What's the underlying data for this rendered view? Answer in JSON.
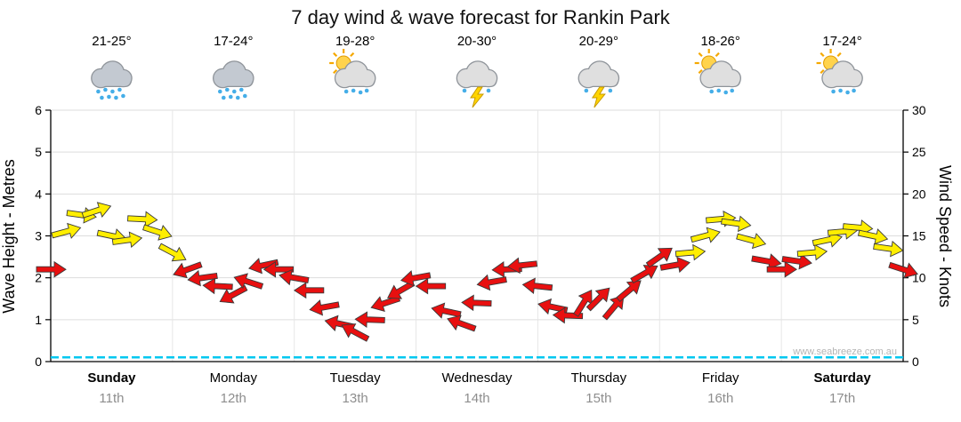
{
  "title": "7 day wind & wave forecast for Rankin Park",
  "watermark": "www.seabreeze.com.au",
  "axes": {
    "left_label": "Wave Height - Metres",
    "right_label": "Wind Speed - Knots"
  },
  "days": [
    {
      "name": "Sunday",
      "date": "11th",
      "temp": "21-25°",
      "icon": "rain",
      "weekend": true
    },
    {
      "name": "Monday",
      "date": "12th",
      "temp": "17-24°",
      "icon": "rain",
      "weekend": false
    },
    {
      "name": "Tuesday",
      "date": "13th",
      "temp": "19-28°",
      "icon": "sun-showers",
      "weekend": false
    },
    {
      "name": "Wednesday",
      "date": "14th",
      "temp": "20-30°",
      "icon": "storm",
      "weekend": false
    },
    {
      "name": "Thursday",
      "date": "15th",
      "temp": "20-29°",
      "icon": "storm",
      "weekend": false
    },
    {
      "name": "Friday",
      "date": "16th",
      "temp": "18-26°",
      "icon": "sun-showers",
      "weekend": false
    },
    {
      "name": "Saturday",
      "date": "17th",
      "temp": "17-24°",
      "icon": "sun-showers",
      "weekend": true
    }
  ],
  "chart_data": {
    "type": "wind-arrows-timeseries",
    "title": "7 day wind & wave forecast for Rankin Park",
    "y_left": {
      "label": "Wave Height - Metres",
      "min": 0,
      "max": 6,
      "ticks": [
        0,
        1,
        2,
        3,
        4,
        5,
        6
      ]
    },
    "y_right": {
      "label": "Wind Speed - Knots",
      "min": 0,
      "max": 30,
      "ticks": [
        0,
        5,
        10,
        15,
        20,
        25,
        30
      ]
    },
    "x_axis": {
      "points_per_day": 8,
      "point_interval_hours": 3,
      "num_days": 7
    },
    "grid": true,
    "point_format": "[wind_speed_knots, arrow_screen_angle_deg (0=pointing right), color_key y=yellow r=red]",
    "wind_points": [
      [
        11,
        0,
        "r"
      ],
      [
        15.5,
        -15,
        "y"
      ],
      [
        17.5,
        8,
        "y"
      ],
      [
        18,
        -18,
        "y"
      ],
      [
        15,
        12,
        "y"
      ],
      [
        14.5,
        -8,
        "y"
      ],
      [
        17,
        3,
        "y"
      ],
      [
        15.5,
        18,
        "y"
      ],
      [
        13,
        28,
        "y"
      ],
      [
        11,
        160,
        "r"
      ],
      [
        10,
        172,
        "r"
      ],
      [
        9,
        183,
        "r"
      ],
      [
        8,
        152,
        "r"
      ],
      [
        9.5,
        198,
        "r"
      ],
      [
        11.5,
        168,
        "r"
      ],
      [
        11,
        180,
        "r"
      ],
      [
        10,
        190,
        "r"
      ],
      [
        8.5,
        180,
        "r"
      ],
      [
        6.5,
        170,
        "r"
      ],
      [
        4.5,
        192,
        "r"
      ],
      [
        3.5,
        208,
        "r"
      ],
      [
        5,
        182,
        "r"
      ],
      [
        7,
        162,
        "r"
      ],
      [
        8.5,
        150,
        "r"
      ],
      [
        10,
        170,
        "r"
      ],
      [
        9,
        180,
        "r"
      ],
      [
        6,
        192,
        "r"
      ],
      [
        4.5,
        200,
        "r"
      ],
      [
        7,
        182,
        "r"
      ],
      [
        9.5,
        170,
        "r"
      ],
      [
        11,
        178,
        "r"
      ],
      [
        11.5,
        174,
        "r"
      ],
      [
        9,
        186,
        "r"
      ],
      [
        6.5,
        192,
        "r"
      ],
      [
        5.5,
        182,
        "r"
      ],
      [
        7,
        -58,
        "r"
      ],
      [
        7.5,
        -45,
        "r"
      ],
      [
        6.5,
        -50,
        "r"
      ],
      [
        8.5,
        -40,
        "r"
      ],
      [
        10.5,
        -30,
        "r"
      ],
      [
        12.5,
        -35,
        "r"
      ],
      [
        11.5,
        -10,
        "r"
      ],
      [
        13,
        -5,
        "y"
      ],
      [
        15,
        -15,
        "y"
      ],
      [
        17,
        -5,
        "y"
      ],
      [
        16.5,
        8,
        "y"
      ],
      [
        14.5,
        15,
        "y"
      ],
      [
        12,
        10,
        "r"
      ],
      [
        11,
        0,
        "r"
      ],
      [
        12,
        8,
        "r"
      ],
      [
        13,
        -5,
        "y"
      ],
      [
        14.5,
        -12,
        "y"
      ],
      [
        15.5,
        -5,
        "y"
      ],
      [
        16,
        5,
        "y"
      ],
      [
        15,
        12,
        "y"
      ],
      [
        13.5,
        8,
        "y"
      ],
      [
        11,
        18,
        "r"
      ]
    ],
    "wave_line": {
      "constant_m": 0.1,
      "color": "#00c8f0"
    },
    "arrow_colors": {
      "yellow": "#ffee00",
      "red": "#e81010"
    },
    "legend": "none"
  }
}
